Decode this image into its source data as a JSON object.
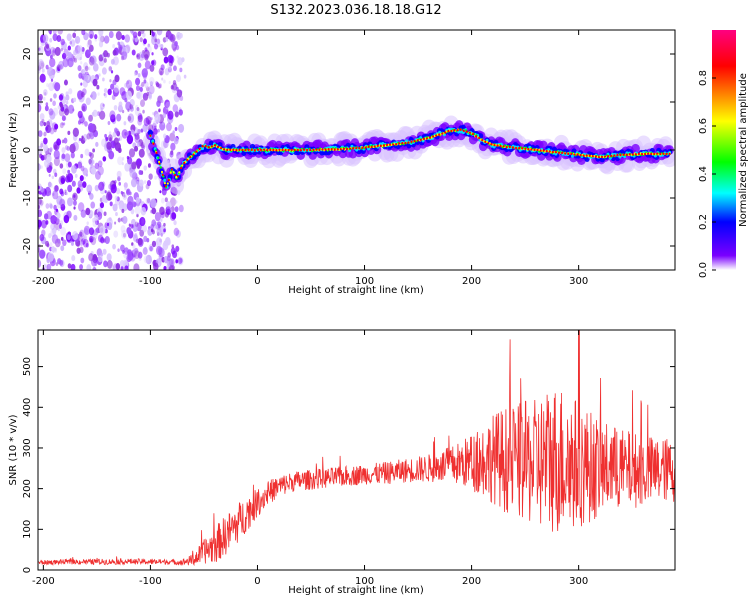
{
  "title": "S132.2023.036.18.18.G12",
  "chart_data": [
    {
      "type": "heatmap",
      "xlabel": "Height of straight line (km)",
      "ylabel": "Frequency (Hz)",
      "xlim": [
        -205,
        390
      ],
      "ylim": [
        -25,
        25
      ],
      "xticks": [
        -200,
        -100,
        0,
        100,
        200,
        300
      ],
      "yticks": [
        -20,
        -10,
        0,
        10,
        20
      ],
      "ridge": {
        "x": [
          -100,
          -95,
          -90,
          -85,
          -80,
          -75,
          -70,
          -65,
          -60,
          -55,
          -50,
          -45,
          -40,
          -30,
          0,
          50,
          80,
          100,
          120,
          140,
          160,
          180,
          190,
          200,
          210,
          220,
          240,
          260,
          280,
          300,
          320,
          340,
          360,
          385
        ],
        "y": [
          3,
          0,
          -4,
          -8,
          -4,
          -6,
          -3,
          -2,
          -1,
          0,
          1,
          0.5,
          1,
          0,
          0,
          0,
          0.2,
          0.5,
          1,
          1.5,
          2.5,
          4,
          4.2,
          3.5,
          2,
          1,
          0.5,
          0,
          -0.5,
          -1,
          -1.5,
          -1,
          -0.8,
          -0.8
        ]
      },
      "noise_region": {
        "x": [
          -205,
          -75
        ],
        "y": [
          -25,
          25
        ]
      },
      "colorbar": {
        "label": "Normalized spectral amplitude",
        "range": [
          0,
          1
        ],
        "ticks": [
          0.0,
          0.2,
          0.4,
          0.6,
          0.8
        ],
        "tick_labels": [
          "0.0",
          "0.2",
          "0.4",
          "0.6",
          "0.8"
        ],
        "colors": [
          "#ffffff",
          "#7a00ff",
          "#0000ff",
          "#00ffff",
          "#00ff00",
          "#ffff00",
          "#ff0000",
          "#ff0080"
        ]
      }
    },
    {
      "type": "line",
      "xlabel": "Height of straight line (km)",
      "ylabel": "SNR (10 * v/v)",
      "xlim": [
        -205,
        390
      ],
      "ylim": [
        0,
        590
      ],
      "xticks": [
        -200,
        -100,
        0,
        100,
        200,
        300
      ],
      "yticks": [
        0,
        100,
        200,
        300,
        400,
        500
      ],
      "color": "#ef3030",
      "series": [
        {
          "x": [
            -205,
            -180,
            -150,
            -120,
            -100,
            -80,
            -70,
            -60,
            -50,
            -40,
            -30,
            -20,
            -10,
            0,
            10,
            20,
            30,
            40,
            50,
            60,
            80,
            100,
            120,
            140,
            160,
            180,
            200,
            210,
            220,
            230,
            240,
            250,
            260,
            270,
            280,
            290,
            300,
            310,
            320,
            330,
            340,
            350,
            360,
            370,
            380,
            390
          ],
          "values": [
            18,
            20,
            20,
            21,
            20,
            20,
            19,
            25,
            45,
            60,
            85,
            110,
            140,
            165,
            190,
            205,
            215,
            220,
            222,
            225,
            230,
            235,
            238,
            245,
            250,
            258,
            265,
            270,
            275,
            272,
            268,
            265,
            262,
            270,
            275,
            268,
            260,
            255,
            250,
            252,
            248,
            246,
            245,
            244,
            246,
            245
          ],
          "spread": [
            6,
            6,
            7,
            7,
            7,
            6,
            8,
            15,
            30,
            45,
            50,
            50,
            45,
            35,
            30,
            28,
            25,
            25,
            25,
            25,
            25,
            25,
            28,
            30,
            35,
            45,
            70,
            90,
            110,
            130,
            140,
            150,
            160,
            180,
            190,
            180,
            160,
            140,
            120,
            110,
            100,
            95,
            90,
            85,
            80,
            80
          ]
        }
      ]
    }
  ]
}
